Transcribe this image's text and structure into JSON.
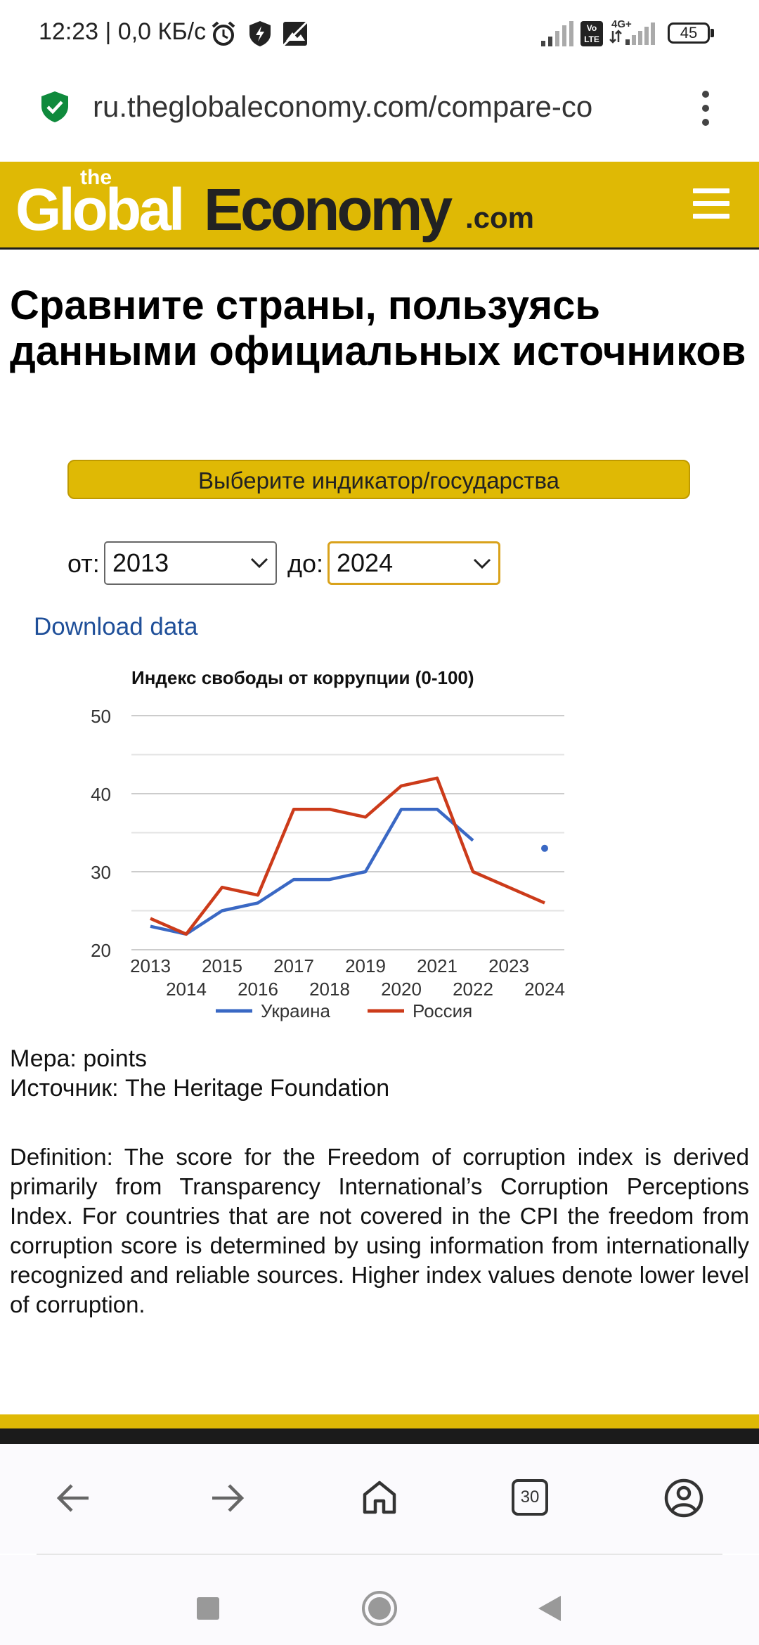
{
  "status_bar": {
    "time": "12:23 | 0,0 КБ/с",
    "network": "4G+",
    "volte": "Vo LTE",
    "battery": "45"
  },
  "url_bar": {
    "url": "ru.theglobaleconomy.com/compare-co"
  },
  "header": {
    "logo_the": "the",
    "logo_global": "Global",
    "logo_economy": "Economy",
    "logo_com": ".com"
  },
  "main": {
    "title": "Сравните страны, пользуясь данными официальных источников",
    "select_button": "Выберите индикатор/государства",
    "from_label": "от:",
    "from_value": "2013",
    "to_label": "до:",
    "to_value": "2024",
    "download_link": "Download data",
    "measure": "Мера: points",
    "source": "Источник: The Heritage Foundation",
    "definition": "Definition: The score for the Freedom of corruption index is derived primarily from Transparency International’s Corruption Perceptions Index. For countries that are not covered in the CPI the freedom from corruption score is determined by using information from internationally recognized and reliable sources. Higher index values denote lower level of corruption."
  },
  "chart_data": {
    "type": "line",
    "title": "Индекс свободы от коррупции (0-100)",
    "x": [
      2013,
      2014,
      2015,
      2016,
      2017,
      2018,
      2019,
      2020,
      2021,
      2022,
      2023,
      2024
    ],
    "x_tick_labels": [
      "2013",
      "2014",
      "2015",
      "2016",
      "2017",
      "2018",
      "2019",
      "2020",
      "2021",
      "2022",
      "2023",
      "2024"
    ],
    "y_ticks": [
      20,
      30,
      40,
      50
    ],
    "ylim": [
      20,
      50
    ],
    "grid": true,
    "legend_position": "bottom",
    "series": [
      {
        "name": "Украина",
        "color": "#3a68c4",
        "values": [
          23,
          22,
          25,
          26,
          29,
          29,
          30,
          38,
          38,
          34,
          null,
          33
        ]
      },
      {
        "name": "Россия",
        "color": "#cc3b1a",
        "values": [
          24,
          22,
          28,
          27,
          38,
          38,
          37,
          41,
          42,
          30,
          28,
          26
        ]
      }
    ]
  },
  "browser_nav": {
    "tab_count": "30"
  },
  "colors": {
    "brand_yellow": "#dfb905",
    "link_blue": "#1f4f99"
  },
  "icons": [
    "alarm-icon",
    "shield-icon",
    "image-icon",
    "signal-icon",
    "battery-icon",
    "secure-shield-icon",
    "more-vert-icon",
    "hamburger-icon",
    "back-arrow-icon",
    "forward-arrow-icon",
    "home-icon",
    "tabs-icon",
    "account-icon",
    "recent-apps-icon",
    "home-circle-icon",
    "back-triangle-icon"
  ]
}
